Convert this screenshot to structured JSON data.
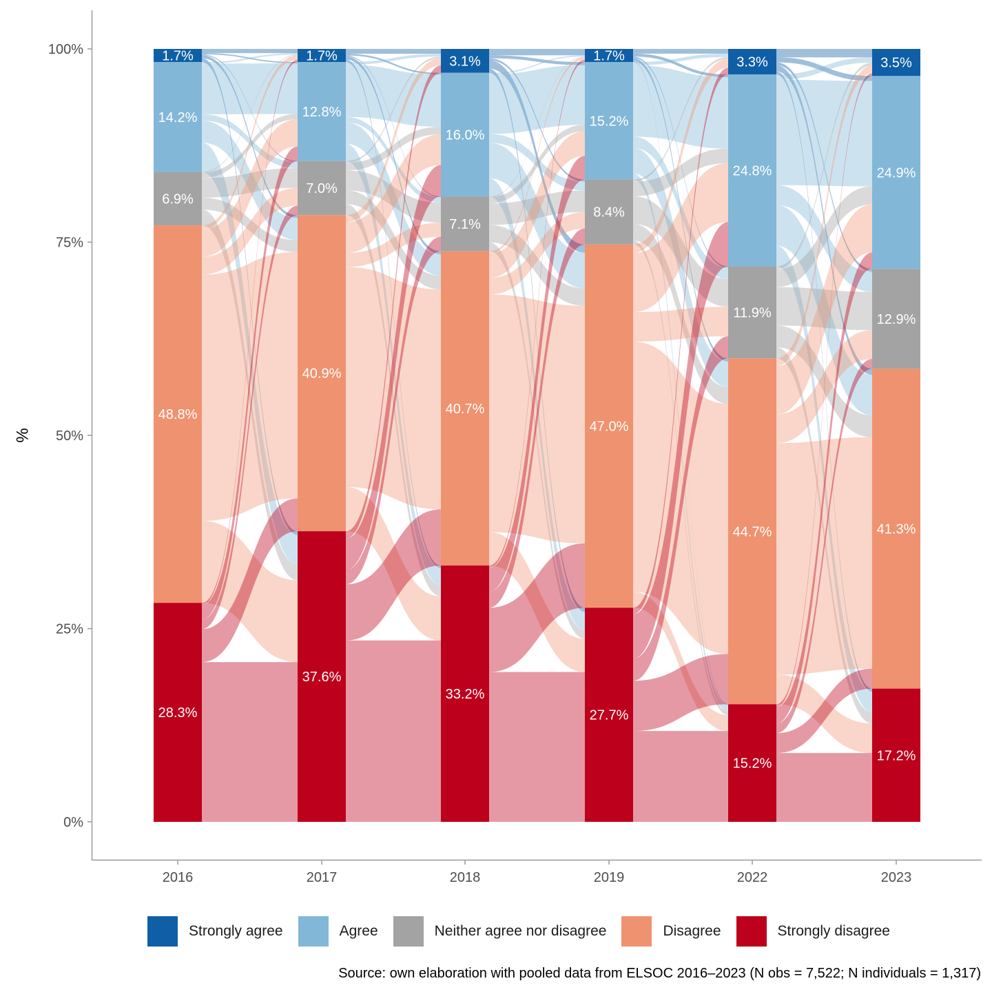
{
  "chart_data": {
    "type": "alluvial",
    "title": "",
    "xlabel": "",
    "ylabel": "%",
    "ylim": [
      0,
      100
    ],
    "yticks": [
      "0%",
      "25%",
      "50%",
      "75%",
      "100%"
    ],
    "ytick_values": [
      0,
      25,
      50,
      75,
      100
    ],
    "categories": [
      "2016",
      "2017",
      "2018",
      "2019",
      "2022",
      "2023"
    ],
    "series": [
      {
        "name": "Strongly agree",
        "color": "#0F5FA6",
        "values": [
          1.7,
          1.7,
          3.1,
          1.7,
          3.3,
          3.5
        ],
        "labels": [
          "1.7%",
          "1.7%",
          "3.1%",
          "1.7%",
          "3.3%",
          "3.5%"
        ]
      },
      {
        "name": "Agree",
        "color": "#82B7D7",
        "values": [
          14.2,
          12.8,
          16.0,
          15.2,
          24.8,
          24.9
        ],
        "labels": [
          "14.2%",
          "12.8%",
          "16.0%",
          "15.2%",
          "24.8%",
          "24.9%"
        ]
      },
      {
        "name": "Neither agree nor disagree",
        "color": "#A3A3A3",
        "values": [
          6.9,
          7.0,
          7.1,
          8.4,
          11.9,
          12.9
        ],
        "labels": [
          "6.9%",
          "7.0%",
          "7.1%",
          "8.4%",
          "11.9%",
          "12.9%"
        ]
      },
      {
        "name": "Disagree",
        "color": "#EF9270",
        "values": [
          48.8,
          40.9,
          40.7,
          47.0,
          44.7,
          41.3
        ],
        "labels": [
          "48.8%",
          "40.9%",
          "40.7%",
          "47.0%",
          "44.7%",
          "41.3%"
        ]
      },
      {
        "name": "Strongly disagree",
        "color": "#BD001C",
        "values": [
          28.3,
          37.6,
          33.2,
          27.7,
          15.2,
          17.2
        ],
        "labels": [
          "28.3%",
          "37.6%",
          "33.2%",
          "27.7%",
          "15.2%",
          "17.2%"
        ]
      }
    ],
    "flow_colors": [
      "#9DBBD9",
      "#CCE1EE",
      "#D6D6D6",
      "#F7D1C4",
      "#E498A3"
    ],
    "legend_position": "bottom",
    "grid": false
  },
  "legend": {
    "items": [
      {
        "label": "Strongly agree",
        "color": "#0F5FA6"
      },
      {
        "label": "Agree",
        "color": "#82B7D7"
      },
      {
        "label": "Neither agree nor disagree",
        "color": "#A3A3A3"
      },
      {
        "label": "Disagree",
        "color": "#EF9270"
      },
      {
        "label": "Strongly disagree",
        "color": "#BD001C"
      }
    ]
  },
  "caption": "Source: own elaboration with pooled data from ELSOC 2016–2023 (N obs = 7,522; N individuals = 1,317)"
}
